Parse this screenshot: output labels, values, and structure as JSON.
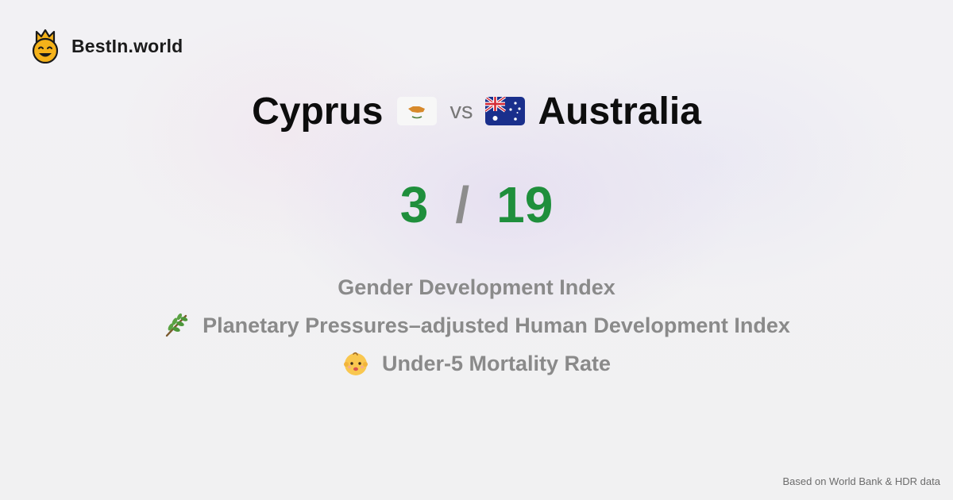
{
  "brand": {
    "name": "BestIn.world",
    "logo_icon": "crowned-smiley-icon"
  },
  "comparison": {
    "left_country": "Cyprus",
    "left_flag": "cyprus-flag-icon",
    "vs_label": "vs",
    "right_country": "Australia",
    "right_flag": "australia-flag-icon"
  },
  "scores": {
    "left": "3",
    "separator": "/",
    "right": "19",
    "color": "#1f8f3c"
  },
  "metrics": [
    {
      "label": "Gender Development Index",
      "icon": ""
    },
    {
      "label": "Planetary Pressures–adjusted Human Development Index",
      "icon": "herb-icon"
    },
    {
      "label": "Under-5 Mortality Rate",
      "icon": "baby-icon"
    }
  ],
  "footer": {
    "source": "Based on World Bank & HDR data"
  }
}
